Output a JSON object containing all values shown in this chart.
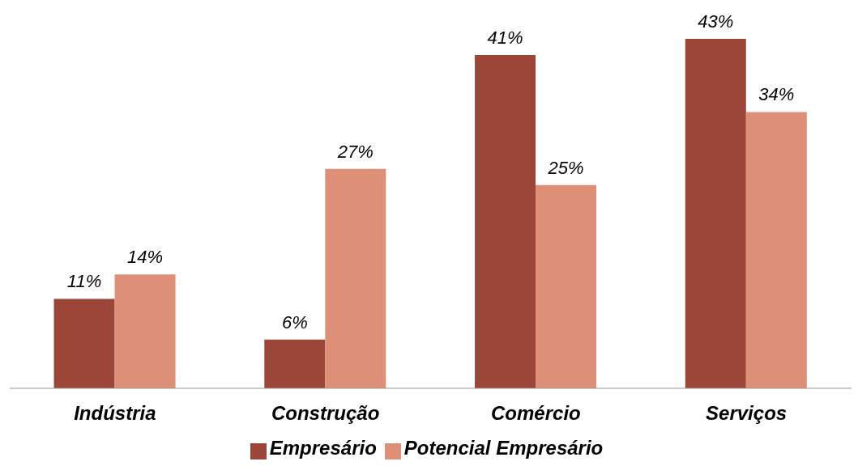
{
  "chart_data": {
    "type": "bar",
    "categories": [
      "Indústria",
      "Construção",
      "Comércio",
      "Serviços"
    ],
    "series": [
      {
        "name": "Empresário",
        "color": "#9b4638",
        "values": [
          11,
          6,
          41,
          43
        ],
        "value_labels": [
          "11%",
          "6%",
          "41%",
          "43%"
        ]
      },
      {
        "name": "Potencial Empresário",
        "color": "#de8f78",
        "values": [
          14,
          27,
          25,
          34
        ],
        "value_labels": [
          "14%",
          "27%",
          "25%",
          "34%"
        ]
      }
    ],
    "legend": "bottom",
    "grid": false
  }
}
